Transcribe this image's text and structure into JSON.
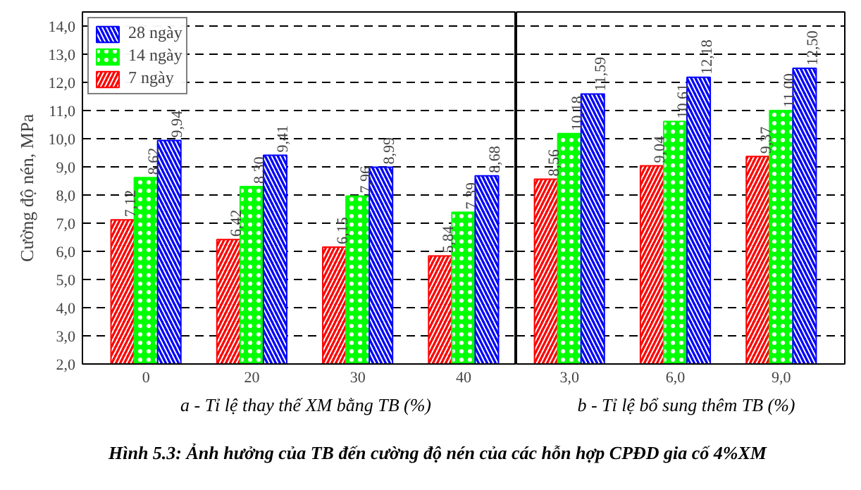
{
  "chart_data": [
    {
      "type": "bar",
      "title": "Hình 5.3: Ảnh hưởng của TB đến cường độ nén của các hỗn hợp CPĐD gia cố 4%XM",
      "ylabel": "Cường độ nén, MPa",
      "xlabel": "a - Tỉ lệ thay thế XM bằng TB (%)",
      "categories": [
        "0",
        "20",
        "30",
        "40"
      ],
      "series": [
        {
          "name": "7 ngày",
          "color": "#ff0000",
          "values": [
            7.12,
            6.42,
            6.15,
            5.84
          ],
          "value_labels": [
            "7,12",
            "6,42",
            "6,15",
            "5,84"
          ]
        },
        {
          "name": "14 ngày",
          "color": "#00ff00",
          "values": [
            8.62,
            8.3,
            7.96,
            7.39
          ],
          "value_labels": [
            "8,62",
            "8,30",
            "7,96",
            "7,39"
          ]
        },
        {
          "name": "28 ngày",
          "color": "#0000ff",
          "values": [
            9.94,
            9.41,
            8.99,
            8.68
          ],
          "value_labels": [
            "9,94",
            "9,41",
            "8,99",
            "8,68"
          ]
        }
      ],
      "ylim": [
        2.0,
        14.5
      ],
      "yticks": [
        {
          "value": 2,
          "label": "2,0"
        },
        {
          "value": 3,
          "label": "3,0"
        },
        {
          "value": 4,
          "label": "4,0"
        },
        {
          "value": 5,
          "label": "5,0"
        },
        {
          "value": 6,
          "label": "6,0"
        },
        {
          "value": 7,
          "label": "7,0"
        },
        {
          "value": 8,
          "label": "8,0"
        },
        {
          "value": 9,
          "label": "9,0"
        },
        {
          "value": 10,
          "label": "10,0"
        },
        {
          "value": 11,
          "label": "11,0"
        },
        {
          "value": 12,
          "label": "12,0"
        },
        {
          "value": 13,
          "label": "13,0"
        },
        {
          "value": 14,
          "label": "14,0"
        }
      ],
      "grid": "y",
      "legend": "top left"
    },
    {
      "type": "bar",
      "xlabel": "b - Tỉ lệ bổ sung thêm TB (%)",
      "categories": [
        "3,0",
        "6,0",
        "9,0"
      ],
      "series": [
        {
          "color": "#ff0000",
          "values": [
            8.56,
            9.04,
            9.37
          ],
          "value_labels": [
            "8,56",
            "9,04",
            "9,37"
          ]
        },
        {
          "color": "#00ff00",
          "values": [
            10.18,
            10.61,
            11.0
          ],
          "value_labels": [
            "10,18",
            "10,61",
            "11,00"
          ]
        },
        {
          "color": "#0000ff",
          "values": [
            11.59,
            12.18,
            12.5
          ],
          "value_labels": [
            "11,59",
            "12,18",
            "12,50"
          ]
        }
      ],
      "ylim": [
        2.0,
        14.5
      ],
      "yticks": [
        2,
        3,
        4,
        5,
        6,
        7,
        8,
        9,
        10,
        11,
        12,
        13,
        14
      ],
      "tick_labels": "x",
      "grid": "y"
    }
  ]
}
